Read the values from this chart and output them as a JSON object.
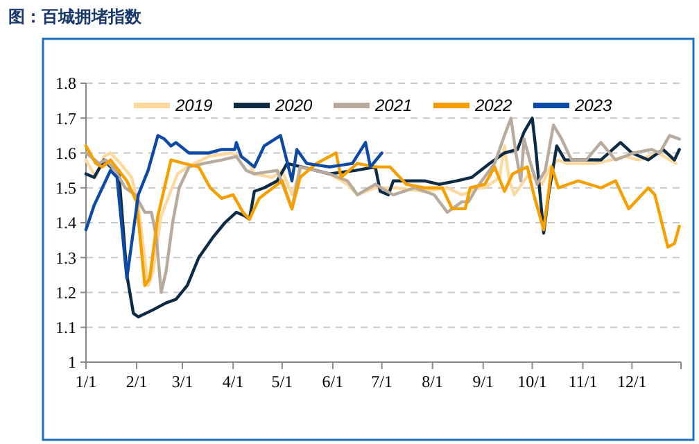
{
  "chart_data": {
    "type": "line",
    "title": "图：百城拥堵指数",
    "xlim": [
      "--01-01",
      "--12-31"
    ],
    "xticks": [
      {
        "value": "--01-01",
        "label": "1/1"
      },
      {
        "value": "--02-01",
        "label": "2/1"
      },
      {
        "value": "--03-01",
        "label": "3/1"
      },
      {
        "value": "--04-01",
        "label": "4/1"
      },
      {
        "value": "--05-01",
        "label": "5/1"
      },
      {
        "value": "--06-01",
        "label": "6/1"
      },
      {
        "value": "--07-01",
        "label": "7/1"
      },
      {
        "value": "--08-01",
        "label": "8/1"
      },
      {
        "value": "--09-01",
        "label": "9/1"
      },
      {
        "value": "--10-01",
        "label": "10/1"
      },
      {
        "value": "--11-01",
        "label": "11/1"
      },
      {
        "value": "--12-01",
        "label": "12/1"
      }
    ],
    "ylim": [
      1,
      1.8
    ],
    "yticks": [
      1,
      1.1,
      1.2,
      1.3,
      1.4,
      1.5,
      1.6,
      1.7,
      1.8
    ],
    "grid": "y",
    "legend": "top",
    "marker": "none",
    "line_style": "solid",
    "series": [
      {
        "name": "2019",
        "color": "#fdd9a0",
        "x": [
          "--01-01",
          "--01-07",
          "--01-12",
          "--01-16",
          "--01-22",
          "--01-29",
          "--02-02",
          "--02-08",
          "--02-11",
          "--02-16",
          "--02-26",
          "--03-04",
          "--03-17",
          "--03-31",
          "--04-10",
          "--04-14",
          "--04-25",
          "--05-01",
          "--05-07",
          "--05-13",
          "--05-30",
          "--06-10",
          "--06-16",
          "--06-27",
          "--07-10",
          "--07-27",
          "--08-10",
          "--08-19",
          "--08-30",
          "--09-02",
          "--09-11",
          "--09-14",
          "--09-17",
          "--09-20",
          "--09-29",
          "--10-07",
          "--10-12",
          "--10-17",
          "--10-22",
          "--11-09",
          "--11-27",
          "--12-05",
          "--12-17",
          "--12-28"
        ],
        "values": [
          1.58,
          1.53,
          1.59,
          1.6,
          1.57,
          1.53,
          1.45,
          1.22,
          1.26,
          1.42,
          1.54,
          1.56,
          1.59,
          1.6,
          1.58,
          1.54,
          1.53,
          1.55,
          1.48,
          1.56,
          1.54,
          1.51,
          1.48,
          1.5,
          1.5,
          1.49,
          1.5,
          1.48,
          1.5,
          1.5,
          1.53,
          1.62,
          1.52,
          1.48,
          1.54,
          1.51,
          1.56,
          1.58,
          1.57,
          1.57,
          1.59,
          1.58,
          1.6,
          1.57
        ]
      },
      {
        "name": "2020",
        "color": "#0d2b45",
        "x": [
          "--01-01",
          "--01-06",
          "--01-12",
          "--01-16",
          "--01-21",
          "--01-26",
          "--01-30",
          "--02-02",
          "--02-11",
          "--02-19",
          "--02-25",
          "--03-04",
          "--03-11",
          "--03-20",
          "--03-27",
          "--04-03",
          "--04-08",
          "--04-11",
          "--04-14",
          "--04-20",
          "--04-28",
          "--05-04",
          "--05-13",
          "--05-30",
          "--06-15",
          "--06-27",
          "--06-30",
          "--07-05",
          "--07-08",
          "--07-16",
          "--07-27",
          "--08-05",
          "--08-16",
          "--08-25",
          "--09-05",
          "--09-14",
          "--09-22",
          "--09-26",
          "--10-01",
          "--10-03",
          "--10-08",
          "--10-11",
          "--10-16",
          "--10-21",
          "--11-01",
          "--11-12",
          "--11-24",
          "--12-01",
          "--12-11",
          "--12-20",
          "--12-27",
          "--12-30"
        ],
        "values": [
          1.54,
          1.53,
          1.58,
          1.56,
          1.55,
          1.25,
          1.14,
          1.13,
          1.15,
          1.17,
          1.18,
          1.22,
          1.3,
          1.36,
          1.4,
          1.43,
          1.42,
          1.41,
          1.49,
          1.5,
          1.52,
          1.57,
          1.56,
          1.54,
          1.55,
          1.56,
          1.49,
          1.48,
          1.52,
          1.52,
          1.52,
          1.51,
          1.52,
          1.53,
          1.57,
          1.6,
          1.61,
          1.66,
          1.7,
          1.62,
          1.37,
          1.48,
          1.62,
          1.58,
          1.58,
          1.58,
          1.63,
          1.6,
          1.58,
          1.61,
          1.58,
          1.61
        ]
      },
      {
        "name": "2021",
        "color": "#b8aa9c",
        "x": [
          "--01-01",
          "--01-09",
          "--01-13",
          "--01-19",
          "--01-25",
          "--01-31",
          "--02-06",
          "--02-10",
          "--02-13",
          "--02-16",
          "--02-19",
          "--02-23",
          "--02-27",
          "--03-05",
          "--03-14",
          "--03-25",
          "--04-03",
          "--04-09",
          "--04-14",
          "--04-28",
          "--05-07",
          "--05-12",
          "--05-30",
          "--06-10",
          "--06-16",
          "--06-27",
          "--07-08",
          "--07-21",
          "--08-02",
          "--08-10",
          "--08-19",
          "--08-23",
          "--08-28",
          "--09-08",
          "--09-14",
          "--09-18",
          "--09-21",
          "--09-24",
          "--09-26",
          "--09-30",
          "--10-04",
          "--10-09",
          "--10-14",
          "--10-19",
          "--10-25",
          "--11-03",
          "--11-12",
          "--11-21",
          "--12-02",
          "--12-13",
          "--12-18",
          "--12-24",
          "--12-30"
        ],
        "values": [
          1.6,
          1.57,
          1.58,
          1.55,
          1.5,
          1.48,
          1.43,
          1.43,
          1.36,
          1.2,
          1.26,
          1.4,
          1.5,
          1.56,
          1.57,
          1.58,
          1.59,
          1.55,
          1.54,
          1.55,
          1.44,
          1.56,
          1.54,
          1.52,
          1.48,
          1.51,
          1.48,
          1.5,
          1.48,
          1.43,
          1.46,
          1.46,
          1.5,
          1.57,
          1.65,
          1.7,
          1.6,
          1.52,
          1.64,
          1.57,
          1.51,
          1.55,
          1.68,
          1.64,
          1.58,
          1.58,
          1.63,
          1.58,
          1.6,
          1.61,
          1.6,
          1.65,
          1.64
        ]
      },
      {
        "name": "2022",
        "color": "#f5a000",
        "x": [
          "--01-01",
          "--01-07",
          "--01-11",
          "--01-16",
          "--01-21",
          "--01-26",
          "--02-01",
          "--02-06",
          "--02-09",
          "--02-14",
          "--02-18",
          "--02-22",
          "--03-02",
          "--03-11",
          "--03-18",
          "--03-25",
          "--04-01",
          "--04-07",
          "--04-11",
          "--04-17",
          "--05-01",
          "--05-04",
          "--05-07",
          "--05-12",
          "--05-22",
          "--06-03",
          "--06-06",
          "--06-16",
          "--06-27",
          "--07-06",
          "--07-16",
          "--07-27",
          "--08-07",
          "--08-13",
          "--08-21",
          "--08-24",
          "--09-02",
          "--09-08",
          "--09-14",
          "--09-19",
          "--09-28",
          "--10-02",
          "--10-08",
          "--10-13",
          "--10-17",
          "--10-29",
          "--11-12",
          "--11-21",
          "--11-29",
          "--12-11",
          "--12-15",
          "--12-23",
          "--12-27",
          "--12-30"
        ],
        "values": [
          1.62,
          1.57,
          1.56,
          1.58,
          1.55,
          1.52,
          1.46,
          1.22,
          1.24,
          1.42,
          1.5,
          1.58,
          1.57,
          1.56,
          1.5,
          1.47,
          1.48,
          1.43,
          1.41,
          1.47,
          1.52,
          1.48,
          1.44,
          1.53,
          1.57,
          1.6,
          1.53,
          1.57,
          1.56,
          1.56,
          1.51,
          1.5,
          1.5,
          1.44,
          1.44,
          1.5,
          1.51,
          1.56,
          1.49,
          1.54,
          1.56,
          1.48,
          1.38,
          1.56,
          1.5,
          1.52,
          1.5,
          1.52,
          1.44,
          1.5,
          1.48,
          1.33,
          1.34,
          1.39
        ]
      },
      {
        "name": "2023",
        "color": "#0c4aa6",
        "x": [
          "--01-01",
          "--01-06",
          "--01-16",
          "--01-20",
          "--01-26",
          "--02-02",
          "--02-08",
          "--02-14",
          "--02-18",
          "--02-22",
          "--02-25",
          "--03-05",
          "--03-17",
          "--03-25",
          "--04-02",
          "--04-03",
          "--04-06",
          "--04-14",
          "--04-20",
          "--04-30",
          "--05-07",
          "--05-10",
          "--05-16",
          "--05-30",
          "--06-13",
          "--06-21",
          "--06-24",
          "--07-01"
        ],
        "values": [
          1.38,
          1.45,
          1.55,
          1.53,
          1.24,
          1.48,
          1.55,
          1.65,
          1.64,
          1.62,
          1.63,
          1.6,
          1.6,
          1.61,
          1.61,
          1.63,
          1.59,
          1.56,
          1.62,
          1.65,
          1.52,
          1.61,
          1.57,
          1.56,
          1.57,
          1.63,
          1.56,
          1.6
        ]
      }
    ]
  }
}
